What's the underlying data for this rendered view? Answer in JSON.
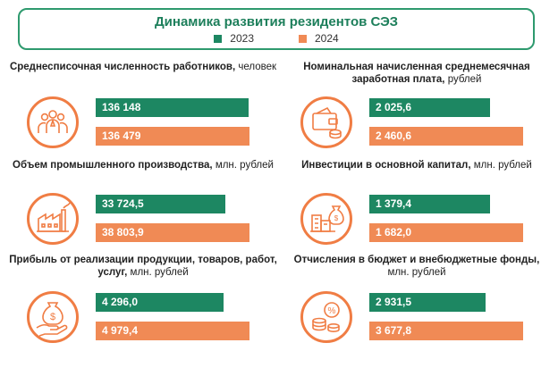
{
  "chart_data": {
    "type": "bar",
    "title": "Динамика развития резидентов СЭЗ",
    "legend": "top",
    "colors": {
      "2023": "#1d8762",
      "2024": "#f08a55",
      "accent": "#f07d44",
      "frame": "#2e9a6e"
    },
    "series": [
      {
        "name": "2023"
      },
      {
        "name": "2024"
      }
    ],
    "panels": [
      {
        "title_bold": "Среднесписочная численность работников,",
        "title_unit": "человек",
        "icon": "people-icon",
        "values": [
          136148,
          136479
        ],
        "labels": [
          "136 148",
          "136 479"
        ]
      },
      {
        "title_bold": "Номинальная начисленная среднемесячная заработная плата,",
        "title_unit": "рублей",
        "icon": "wallet-coins-icon",
        "values": [
          2025.6,
          2460.6
        ],
        "labels": [
          "2 025,6",
          "2 460,6"
        ]
      },
      {
        "title_bold": "Объем промышленного производства,",
        "title_unit": "млн. рублей",
        "icon": "factory-icon",
        "values": [
          33724.5,
          38803.9
        ],
        "labels": [
          "33 724,5",
          "38 803,9"
        ]
      },
      {
        "title_bold": "Инвестиции в основной капитал,",
        "title_unit": "млн. рублей",
        "icon": "buildings-money-bag-icon",
        "values": [
          1379.4,
          1682.0
        ],
        "labels": [
          "1 379,4",
          "1 682,0"
        ]
      },
      {
        "title_bold": "Прибыль от реализации продукции, товаров, работ, услуг,",
        "title_unit": "млн. рублей",
        "icon": "hand-money-bag-icon",
        "values": [
          4296.0,
          4979.4
        ],
        "labels": [
          "4 296,0",
          "4 979,4"
        ]
      },
      {
        "title_bold": "Отчисления в бюджет и внебюджетные фонды,",
        "title_unit": "млн. рублей",
        "icon": "percent-coins-icon",
        "values": [
          2931.5,
          3677.8
        ],
        "labels": [
          "2 931,5",
          "3 677,8"
        ]
      }
    ]
  }
}
